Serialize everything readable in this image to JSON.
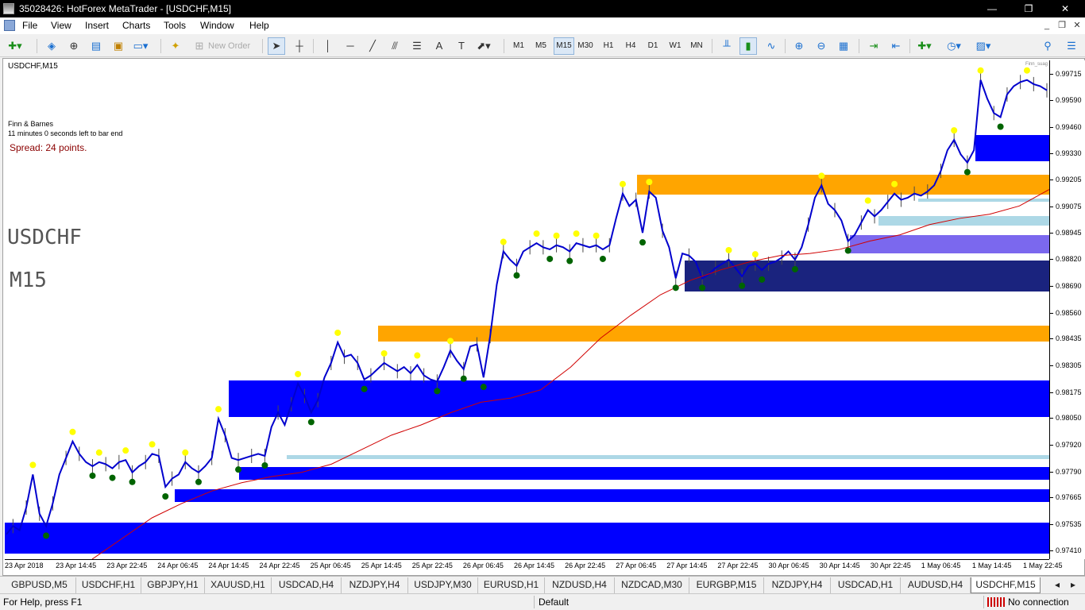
{
  "window": {
    "title": "35028426: HotForex MetaTrader - [USDCHF,M15]",
    "minimize": "—",
    "restore": "❐",
    "close": "✕"
  },
  "menu": {
    "items": [
      "File",
      "View",
      "Insert",
      "Charts",
      "Tools",
      "Window",
      "Help"
    ],
    "mdi": {
      "minimize": "_",
      "restore": "❐",
      "close": "✕"
    }
  },
  "toolbar": {
    "new_order": "New Order",
    "timeframes": [
      "M1",
      "M5",
      "M15",
      "M30",
      "H1",
      "H4",
      "D1",
      "W1",
      "MN"
    ],
    "active_timeframe": "M15"
  },
  "chart": {
    "symbol_label": "USDCHF,M15",
    "corner_tag": "Finn_suag",
    "info_lines": [
      "Finn & Barnes",
      "11 minutes 0 seconds left to bar end"
    ],
    "spread": "Spread: 24 points.",
    "big_symbol": "USDCHF",
    "big_timeframe": "M15",
    "colors": {
      "price": "#0000cd",
      "ma": "#d00000",
      "zone_blue": "#0000ff",
      "zone_navy": "#1a237e",
      "zone_orange": "#ffa500",
      "zone_lightblue": "#add8e6",
      "zone_purple": "#7b68ee",
      "marker_yellow": "#ffff00",
      "marker_green": "#006400"
    }
  },
  "chart_data": {
    "type": "line",
    "title": "",
    "symbol": "USDCHF",
    "timeframe": "M15",
    "y_ticks": [
      "0.99715",
      "0.99590",
      "0.99460",
      "0.99330",
      "0.99205",
      "0.99075",
      "0.98945",
      "0.98820",
      "0.98690",
      "0.98560",
      "0.98435",
      "0.98305",
      "0.98175",
      "0.98050",
      "0.97920",
      "0.97790",
      "0.97665",
      "0.97535",
      "0.97410"
    ],
    "ylim": [
      0.9737,
      0.99785
    ],
    "x_ticks": [
      "23 Apr 2018",
      "23 Apr 14:45",
      "23 Apr 22:45",
      "24 Apr 06:45",
      "24 Apr 14:45",
      "24 Apr 22:45",
      "25 Apr 06:45",
      "25 Apr 14:45",
      "25 Apr 22:45",
      "26 Apr 06:45",
      "26 Apr 14:45",
      "26 Apr 22:45",
      "27 Apr 06:45",
      "27 Apr 14:45",
      "27 Apr 22:45",
      "30 Apr 06:45",
      "30 Apr 14:45",
      "30 Apr 22:45",
      "1 May 06:45",
      "1 May 14:45",
      "1 May 22:45"
    ],
    "series": [
      {
        "values": [
          0.9749,
          0.9753,
          0.9751,
          0.9762,
          0.9778,
          0.9759,
          0.9753,
          0.9764,
          0.9778,
          0.9786,
          0.9794,
          0.9788,
          0.9784,
          0.9782,
          0.9784,
          0.9783,
          0.9781,
          0.9784,
          0.9785,
          0.9779,
          0.9782,
          0.9784,
          0.9788,
          0.9787,
          0.9772,
          0.9776,
          0.9778,
          0.9784,
          0.9781,
          0.9779,
          0.9782,
          0.9786,
          0.9805,
          0.9797,
          0.9786,
          0.9785,
          0.9786,
          0.9787,
          0.9788,
          0.9787,
          0.9801,
          0.9808,
          0.9802,
          0.9812,
          0.9822,
          0.9816,
          0.9808,
          0.9814,
          0.9825,
          0.9832,
          0.9842,
          0.9835,
          0.9836,
          0.9832,
          0.9824,
          0.9826,
          0.9829,
          0.9832,
          0.983,
          0.9828,
          0.983,
          0.9827,
          0.9831,
          0.9826,
          0.9824,
          0.9823,
          0.983,
          0.9838,
          0.9833,
          0.9829,
          0.984,
          0.9841,
          0.9825,
          0.9845,
          0.987,
          0.9886,
          0.9882,
          0.9879,
          0.9886,
          0.9888,
          0.989,
          0.9888,
          0.9887,
          0.9889,
          0.9888,
          0.9886,
          0.989,
          0.9889,
          0.9888,
          0.9889,
          0.9887,
          0.9889,
          0.9902,
          0.9914,
          0.9908,
          0.9911,
          0.9895,
          0.9915,
          0.9912,
          0.9896,
          0.9888,
          0.9873,
          0.9885,
          0.9884,
          0.9881,
          0.9873,
          0.9875,
          0.9878,
          0.988,
          0.9882,
          0.9878,
          0.9874,
          0.9879,
          0.988,
          0.9877,
          0.988,
          0.9881,
          0.9883,
          0.9886,
          0.9882,
          0.9888,
          0.9899,
          0.9912,
          0.9918,
          0.9909,
          0.9906,
          0.9901,
          0.9891,
          0.9894,
          0.99,
          0.9906,
          0.9903,
          0.9906,
          0.991,
          0.9914,
          0.9911,
          0.9912,
          0.9914,
          0.9913,
          0.9915,
          0.9918,
          0.9925,
          0.9935,
          0.994,
          0.9933,
          0.9929,
          0.9935,
          0.9969,
          0.996,
          0.9953,
          0.9951,
          0.9962,
          0.9966,
          0.9968,
          0.9969,
          0.9967,
          0.9966,
          0.9964
        ]
      },
      {
        "values": [
          0.9737,
          0.9747,
          0.9757,
          0.9764,
          0.977,
          0.9774,
          0.9777,
          0.9779,
          0.9783,
          0.979,
          0.9797,
          0.9802,
          0.9808,
          0.9813,
          0.9815,
          0.9819,
          0.983,
          0.9844,
          0.9855,
          0.9865,
          0.9872,
          0.9877,
          0.9881,
          0.9884,
          0.9885,
          0.9887,
          0.9891,
          0.9894,
          0.9899,
          0.9902,
          0.9904,
          0.9908,
          0.9916
        ]
      }
    ],
    "zones": [
      {
        "color": "blue",
        "range": [
          0.97395,
          0.97545
        ]
      },
      {
        "color": "blue",
        "range": [
          0.97645,
          0.9771
        ]
      },
      {
        "color": "blue",
        "range": [
          0.97755,
          0.97815
        ]
      },
      {
        "color": "lightblue",
        "range": [
          0.97855,
          0.97875
        ]
      },
      {
        "color": "blue",
        "range": [
          0.9806,
          0.98235
        ]
      },
      {
        "color": "orange",
        "range": [
          0.98425,
          0.985
        ]
      },
      {
        "color": "navy",
        "range": [
          0.98665,
          0.98815
        ]
      },
      {
        "color": "purple",
        "range": [
          0.9885,
          0.9894
        ]
      },
      {
        "color": "lightblue",
        "range": [
          0.98985,
          0.9903
        ]
      },
      {
        "color": "lightblue",
        "range": [
          0.991,
          0.99115
        ]
      },
      {
        "color": "orange",
        "range": [
          0.99135,
          0.9923
        ]
      },
      {
        "color": "blue",
        "range": [
          0.99295,
          0.99425
        ]
      }
    ]
  },
  "tabs": {
    "items": [
      "GBPUSD,M5",
      "USDCHF,H1",
      "GBPJPY,H1",
      "XAUUSD,H1",
      "USDCAD,H4",
      "NZDJPY,H4",
      "USDJPY,M30",
      "EURUSD,H1",
      "NZDUSD,H4",
      "NZDCAD,M30",
      "EURGBP,M15",
      "NZDJPY,H4",
      "USDCAD,H1",
      "AUDUSD,H4",
      "USDCHF,M15"
    ],
    "active": "USDCHF,M15",
    "scroll_left": "◂",
    "scroll_right": "▸"
  },
  "status": {
    "help": "For Help, press F1",
    "profile": "Default",
    "connection": "No connection"
  }
}
